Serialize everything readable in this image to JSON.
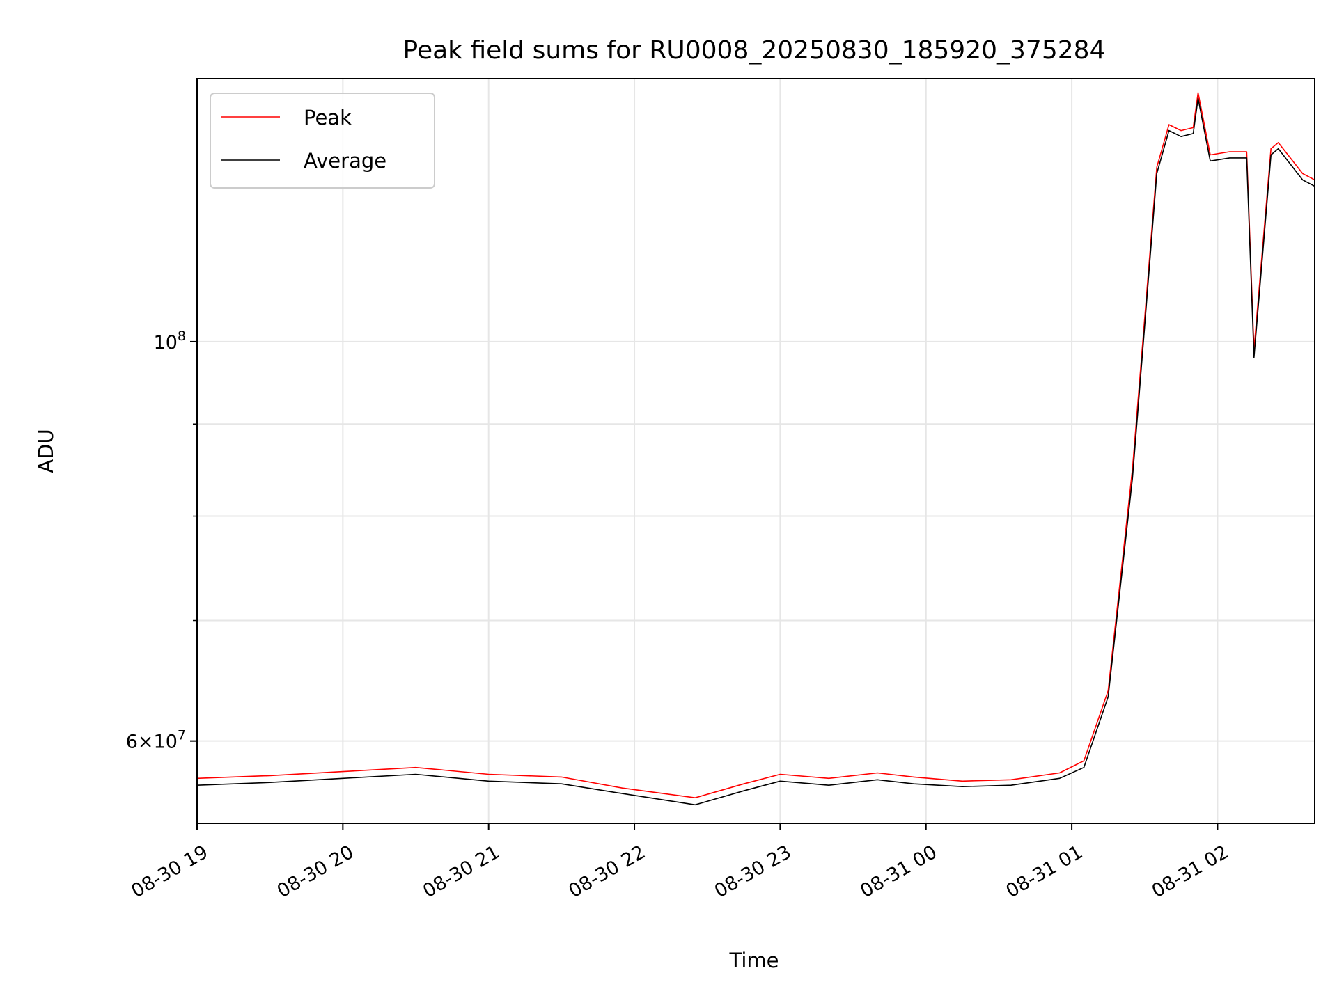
{
  "chart_data": {
    "type": "line",
    "title": "Peak field sums for RU0008_20250830_185920_375284",
    "xlabel": "Time",
    "ylabel": "ADU",
    "y_scale": "log",
    "ylim": [
      54000000,
      140000000
    ],
    "xlim": [
      "2025-08-30 19:00",
      "2025-08-31 02:40"
    ],
    "grid": true,
    "legend_position": "top-left",
    "x_ticks": [
      {
        "t": "2025-08-30 19:00",
        "label": "08-30 19"
      },
      {
        "t": "2025-08-30 20:00",
        "label": "08-30 20"
      },
      {
        "t": "2025-08-30 21:00",
        "label": "08-30 21"
      },
      {
        "t": "2025-08-30 22:00",
        "label": "08-30 22"
      },
      {
        "t": "2025-08-30 23:00",
        "label": "08-30 23"
      },
      {
        "t": "2025-08-31 00:00",
        "label": "08-31 00"
      },
      {
        "t": "2025-08-31 01:00",
        "label": "08-31 01"
      },
      {
        "t": "2025-08-31 02:00",
        "label": "08-31 02"
      }
    ],
    "y_ticks_major": [
      {
        "v": 60000000,
        "base": "6×10",
        "exp": "7"
      },
      {
        "v": 100000000,
        "base": "10",
        "exp": "8"
      }
    ],
    "y_ticks_minor": [
      70000000,
      80000000,
      90000000
    ],
    "series": [
      {
        "name": "Peak",
        "color": "#ff0000",
        "x": [
          "2025-08-30 19:00",
          "2025-08-30 19:30",
          "2025-08-30 20:00",
          "2025-08-30 20:30",
          "2025-08-30 21:00",
          "2025-08-30 21:30",
          "2025-08-30 21:55",
          "2025-08-30 22:25",
          "2025-08-30 22:45",
          "2025-08-30 23:00",
          "2025-08-30 23:20",
          "2025-08-30 23:40",
          "2025-08-30 23:55",
          "2025-08-31 00:15",
          "2025-08-31 00:35",
          "2025-08-31 00:55",
          "2025-08-31 01:05",
          "2025-08-31 01:15",
          "2025-08-31 01:25",
          "2025-08-31 01:30",
          "2025-08-31 01:35",
          "2025-08-31 01:40",
          "2025-08-31 01:45",
          "2025-08-31 01:50",
          "2025-08-31 01:52",
          "2025-08-31 01:57",
          "2025-08-31 02:05",
          "2025-08-31 02:12",
          "2025-08-31 02:15",
          "2025-08-31 02:22",
          "2025-08-31 02:25",
          "2025-08-31 02:35",
          "2025-08-31 02:40"
        ],
        "values": [
          57200000,
          57400000,
          57700000,
          58000000,
          57500000,
          57300000,
          56500000,
          55800000,
          56800000,
          57500000,
          57200000,
          57600000,
          57300000,
          57000000,
          57100000,
          57600000,
          58500000,
          64000000,
          85000000,
          103000000,
          125000000,
          132000000,
          131000000,
          131500000,
          137500000,
          127000000,
          127500000,
          127500000,
          99000000,
          128000000,
          129000000,
          124000000,
          123000000
        ]
      },
      {
        "name": "Average",
        "color": "#000000",
        "x": [
          "2025-08-30 19:00",
          "2025-08-30 19:30",
          "2025-08-30 20:00",
          "2025-08-30 20:30",
          "2025-08-30 21:00",
          "2025-08-30 21:30",
          "2025-08-30 21:55",
          "2025-08-30 22:25",
          "2025-08-30 22:45",
          "2025-08-30 23:00",
          "2025-08-30 23:20",
          "2025-08-30 23:40",
          "2025-08-30 23:55",
          "2025-08-31 00:15",
          "2025-08-31 00:35",
          "2025-08-31 00:55",
          "2025-08-31 01:05",
          "2025-08-31 01:15",
          "2025-08-31 01:25",
          "2025-08-31 01:30",
          "2025-08-31 01:35",
          "2025-08-31 01:40",
          "2025-08-31 01:45",
          "2025-08-31 01:50",
          "2025-08-31 01:52",
          "2025-08-31 01:57",
          "2025-08-31 02:05",
          "2025-08-31 02:12",
          "2025-08-31 02:15",
          "2025-08-31 02:22",
          "2025-08-31 02:25",
          "2025-08-31 02:35",
          "2025-08-31 02:40"
        ],
        "values": [
          56700000,
          56900000,
          57200000,
          57500000,
          57000000,
          56800000,
          56100000,
          55300000,
          56300000,
          57000000,
          56700000,
          57100000,
          56800000,
          56600000,
          56700000,
          57200000,
          58000000,
          63500000,
          84000000,
          102000000,
          124000000,
          131000000,
          130000000,
          130500000,
          136500000,
          126000000,
          126500000,
          126500000,
          98000000,
          127000000,
          128000000,
          123000000,
          122000000
        ]
      }
    ]
  }
}
